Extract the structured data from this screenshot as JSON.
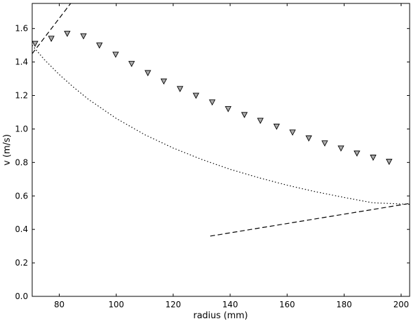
{
  "chart_data": {
    "type": "scatter",
    "title": "",
    "xlabel": "radius (mm)",
    "ylabel": "v (m/s)",
    "xlim": [
      70.5,
      203
    ],
    "ylim": [
      0,
      1.75
    ],
    "x_ticks": [
      80,
      100,
      120,
      140,
      160,
      180,
      200
    ],
    "y_ticks": [
      0.0,
      0.2,
      0.4,
      0.6,
      0.8,
      1.0,
      1.2,
      1.4,
      1.6
    ],
    "x_tick_labels": [
      "80",
      "100",
      "120",
      "140",
      "160",
      "180",
      "200"
    ],
    "y_tick_labels": [
      "0.0",
      "0.2",
      "0.4",
      "0.6",
      "0.8",
      "1.0",
      "1.2",
      "1.4",
      "1.6"
    ],
    "grid": false,
    "legend": "none",
    "series": [
      {
        "style": "triangle-down markers",
        "color": "#aaaaaa",
        "x": [
          71.5,
          77.2,
          82.8,
          88.5,
          94.1,
          99.8,
          105.4,
          111.1,
          116.7,
          122.4,
          128.0,
          133.7,
          139.3,
          145.0,
          150.6,
          156.3,
          161.9,
          167.6,
          173.2,
          178.9,
          184.5,
          190.2,
          195.8
        ],
        "y": [
          1.51,
          1.54,
          1.57,
          1.555,
          1.5,
          1.445,
          1.39,
          1.335,
          1.285,
          1.24,
          1.2,
          1.16,
          1.12,
          1.085,
          1.05,
          1.015,
          0.98,
          0.945,
          0.915,
          0.885,
          0.855,
          0.83,
          0.805
        ]
      },
      {
        "style": "dotted",
        "color": "#000000",
        "x": [
          70.5,
          75,
          80,
          85,
          90,
          100,
          110,
          120,
          130,
          140,
          150,
          160,
          170,
          180,
          190,
          203
        ],
        "y": [
          1.5,
          1.41,
          1.325,
          1.25,
          1.18,
          1.063,
          0.966,
          0.886,
          0.818,
          0.759,
          0.709,
          0.664,
          0.625,
          0.591,
          0.559,
          0.55
        ]
      },
      {
        "style": "dashed",
        "color": "#000000",
        "x": [
          70.5,
          84.0
        ],
        "y": [
          1.45,
          1.75
        ]
      },
      {
        "style": "dashed",
        "color": "#000000",
        "x": [
          133.0,
          203.0
        ],
        "y": [
          0.36,
          0.555
        ]
      }
    ]
  }
}
